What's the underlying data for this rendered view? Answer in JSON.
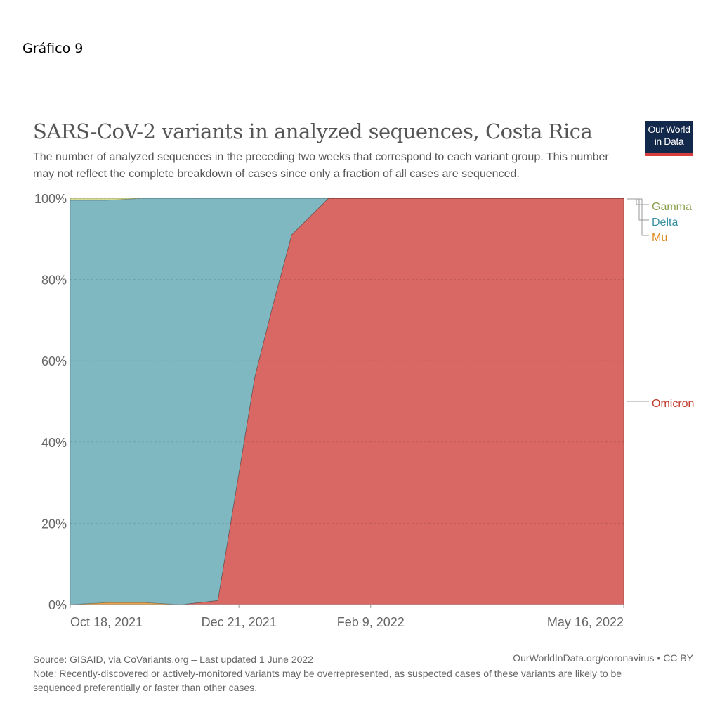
{
  "caption": "Gráfico 9",
  "title": "SARS-CoV-2 variants in analyzed sequences, Costa Rica",
  "subtitle": "The number of analyzed sequences in the preceding two weeks that correspond to each variant group. This number may not reflect the complete breakdown of cases since only a fraction of all cases are sequenced.",
  "logo": {
    "line1": "Our World",
    "line2": "in Data"
  },
  "source": "Source: GISAID, via CoVariants.org – Last updated 1 June 2022",
  "site": "OurWorldInData.org/coronavirus • CC BY",
  "note": "Note: Recently-discovered or actively-monitored variants may be overrepresented, as suspected cases of these variants are likely to be sequenced preferentially or faster than other cases.",
  "colors": {
    "omicron": "#d96864",
    "delta": "#80b8c1",
    "mu": "#e8a24a",
    "gamma": "#d5dc93",
    "omicron_label": "#c0392b",
    "delta_label": "#3a8fa3",
    "mu_label": "#d98a1e",
    "gamma_label": "#8aa04a"
  },
  "chart_data": {
    "type": "area",
    "stacked": true,
    "x": [
      "2021-10-18",
      "2021-11-01",
      "2021-11-15",
      "2021-11-29",
      "2021-12-13",
      "2021-12-27",
      "2022-01-03",
      "2022-01-10",
      "2022-01-24",
      "2022-02-09",
      "2022-05-16"
    ],
    "series": [
      {
        "name": "Omicron",
        "values": [
          0,
          0,
          0,
          0,
          1,
          56,
          74,
          91,
          100,
          100,
          100
        ]
      },
      {
        "name": "Mu",
        "values": [
          0,
          0.5,
          0.5,
          0,
          0,
          0,
          0,
          0,
          0,
          0,
          0
        ]
      },
      {
        "name": "Delta",
        "values": [
          99.5,
          99.0,
          99.5,
          100,
          99,
          44,
          26,
          9,
          0,
          0,
          0
        ]
      },
      {
        "name": "Gamma",
        "values": [
          0.5,
          0.5,
          0,
          0,
          0,
          0,
          0,
          0,
          0,
          0,
          0
        ]
      }
    ],
    "legend_order": [
      "Gamma",
      "Delta",
      "Mu"
    ],
    "y_ticks": [
      "0%",
      "20%",
      "40%",
      "60%",
      "80%",
      "100%"
    ],
    "x_ticks": [
      {
        "date": "2021-10-18",
        "label": "Oct 18, 2021"
      },
      {
        "date": "2021-12-21",
        "label": "Dec 21, 2021"
      },
      {
        "date": "2022-02-09",
        "label": "Feb 9, 2022"
      },
      {
        "date": "2022-05-16",
        "label": "May 16, 2022"
      }
    ],
    "ylim": [
      0,
      100
    ],
    "grid": true,
    "legend_position": "right"
  }
}
